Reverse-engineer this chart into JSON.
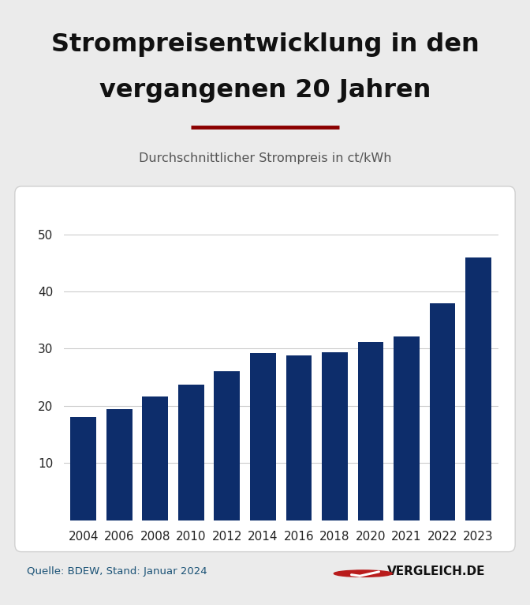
{
  "title_line1": "Strompreisentwicklung in den",
  "title_line2": "vergangenen 20 Jahren",
  "subtitle": "Durchschnittlicher Strompreis in ct/kWh",
  "categories": [
    "2004",
    "2006",
    "2008",
    "2010",
    "2012",
    "2014",
    "2016",
    "2018",
    "2020",
    "2021",
    "2022",
    "2023"
  ],
  "values": [
    18.0,
    19.5,
    21.6,
    23.7,
    26.0,
    29.3,
    28.8,
    29.4,
    31.2,
    32.1,
    38.0,
    46.0
  ],
  "bar_color": "#0d2d6b",
  "background_color": "#ebebeb",
  "chart_bg_color": "#ffffff",
  "title_color": "#111111",
  "subtitle_color": "#555555",
  "accent_line_color": "#8b0000",
  "source_text": "Quelle: BDEW, Stand: Januar 2024",
  "source_color": "#1a5276",
  "brand_text": "VERGLEICH.DE",
  "brand_color": "#111111",
  "ylim": [
    0,
    55
  ],
  "yticks": [
    10,
    20,
    30,
    40,
    50
  ],
  "grid_color": "#cccccc",
  "tick_label_fontsize": 11,
  "title_fontsize": 23,
  "subtitle_fontsize": 11.5
}
